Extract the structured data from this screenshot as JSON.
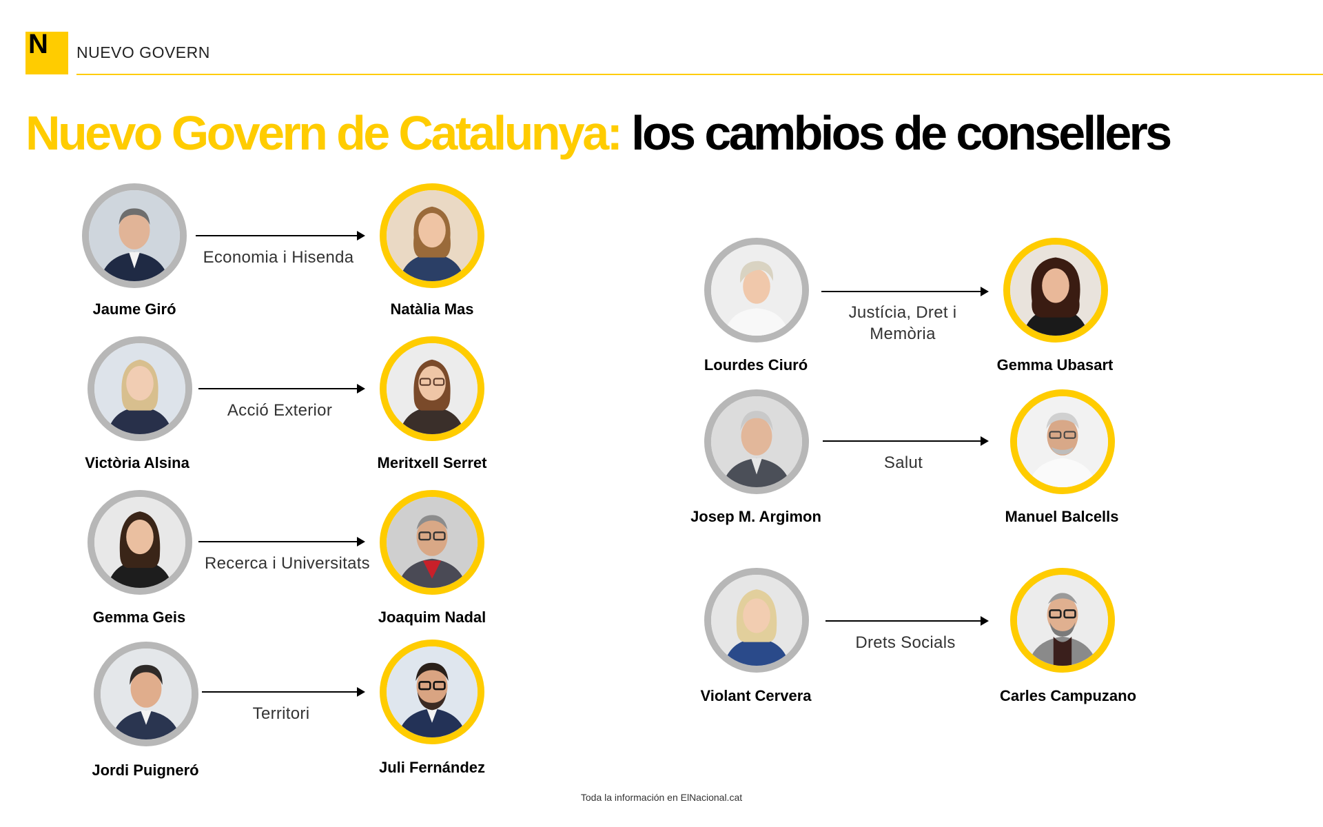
{
  "header": {
    "logo_letter": "N",
    "section": "NUEVO GOVERN",
    "title_yellow": "Nuevo Govern de Catalunya:",
    "title_black": "los cambios de consellers"
  },
  "changes": [
    {
      "department": "Economia i Hisenda",
      "outgoing": "Jaume Giró",
      "incoming": "Natàlia Mas"
    },
    {
      "department": "Acció Exterior",
      "outgoing": "Victòria Alsina",
      "incoming": "Meritxell Serret"
    },
    {
      "department": "Recerca i Universitats",
      "outgoing": "Gemma Geis",
      "incoming": "Joaquim Nadal"
    },
    {
      "department": "Territori",
      "outgoing": "Jordi Puigneró",
      "incoming": "Juli Fernández"
    },
    {
      "department_line1": "Justícia, Dret i",
      "department_line2": "Memòria",
      "outgoing": "Lourdes Ciuró",
      "incoming": "Gemma Ubasart"
    },
    {
      "department": "Salut",
      "outgoing": "Josep M. Argimon",
      "incoming": "Manuel Balcells"
    },
    {
      "department": "Drets Socials",
      "outgoing": "Violant Cervera",
      "incoming": "Carles Campuzano"
    }
  ],
  "footer": "Toda la información en ElNacional.cat",
  "colors": {
    "accent": "#ffcc00",
    "outgoing_ring": "#b7b7b7",
    "text": "#000000"
  }
}
